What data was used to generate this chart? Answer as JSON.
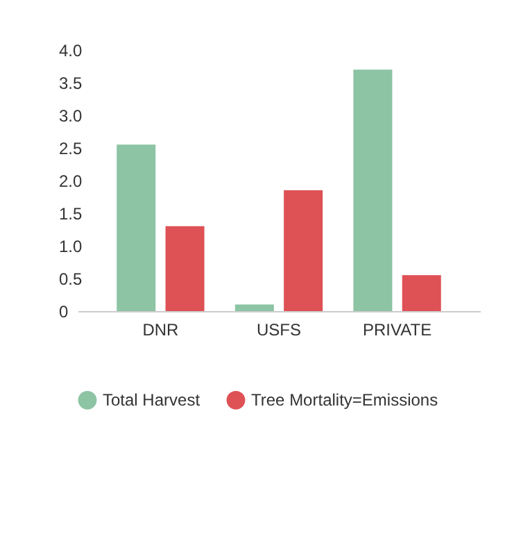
{
  "chart_data": {
    "type": "bar",
    "categories": [
      "DNR",
      "USFS",
      "PRIVATE"
    ],
    "series": [
      {
        "name": "Total Harvest",
        "color": "#8cc4a4",
        "values": [
          2.55,
          0.1,
          3.7
        ]
      },
      {
        "name": "Tree Mortality=Emissions",
        "color": "#de5155",
        "values": [
          1.3,
          1.85,
          0.55
        ]
      }
    ],
    "ylim": [
      0,
      4
    ],
    "yticks": [
      0,
      {
        "value": 0.5,
        "label": "0.5"
      },
      {
        "value": 1,
        "label": "1.0"
      },
      {
        "value": 1.5,
        "label": "1.5"
      },
      {
        "value": 2,
        "label": "2.0"
      },
      {
        "value": 2.5,
        "label": "2.5"
      },
      {
        "value": 3,
        "label": "3.0"
      },
      {
        "value": 3.5,
        "label": "3.5"
      },
      {
        "value": 4,
        "label": "4.0"
      }
    ],
    "grid": false,
    "legend": "bottom"
  }
}
